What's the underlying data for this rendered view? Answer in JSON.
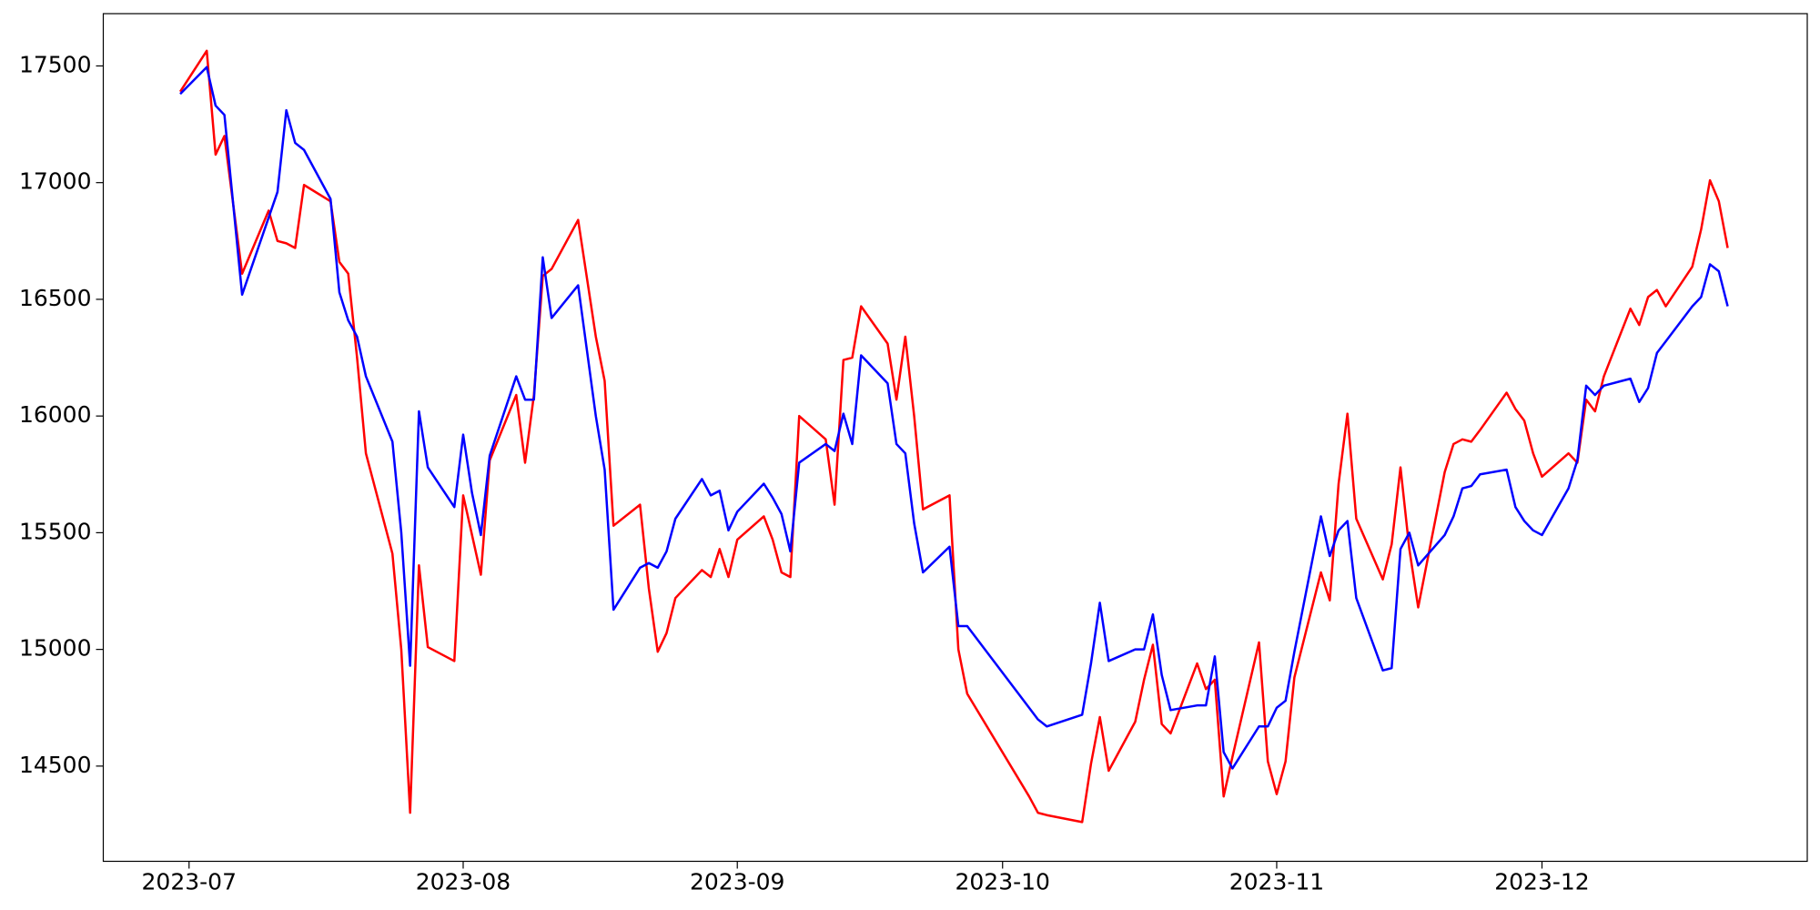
{
  "chart_data": {
    "type": "line",
    "x": [
      19538,
      19541,
      19542,
      19543,
      19545,
      19548,
      19549,
      19550,
      19551,
      19552,
      19555,
      19556,
      19557,
      19558,
      19559,
      19562,
      19563,
      19564,
      19565,
      19566,
      19569,
      19570,
      19571,
      19572,
      19573,
      19576,
      19577,
      19578,
      19579,
      19580,
      19583,
      19585,
      19586,
      19587,
      19590,
      19591,
      19592,
      19593,
      19594,
      19597,
      19598,
      19599,
      19600,
      19601,
      19604,
      19605,
      19606,
      19607,
      19608,
      19611,
      19612,
      19613,
      19614,
      19615,
      19618,
      19619,
      19620,
      19621,
      19622,
      19625,
      19626,
      19627,
      19634,
      19635,
      19636,
      19640,
      19641,
      19642,
      19643,
      19646,
      19647,
      19648,
      19649,
      19650,
      19653,
      19654,
      19655,
      19656,
      19657,
      19660,
      19661,
      19662,
      19663,
      19664,
      19667,
      19668,
      19669,
      19670,
      19671,
      19674,
      19675,
      19676,
      19677,
      19678,
      19681,
      19682,
      19683,
      19684,
      19685,
      19688,
      19689,
      19690,
      19691,
      19692,
      19695,
      19696,
      19697,
      19698,
      19699,
      19702,
      19703,
      19704,
      19705,
      19706,
      19709,
      19710,
      19711,
      19712,
      19713
    ],
    "series": [
      {
        "color": "#ff0000",
        "values": [
          17390,
          17565,
          17120,
          17200,
          16610,
          16880,
          16750,
          16740,
          16720,
          16990,
          16920,
          16660,
          16610,
          16250,
          15840,
          15410,
          15000,
          14300,
          15360,
          15010,
          14950,
          15660,
          15490,
          15320,
          15810,
          16090,
          15800,
          16090,
          16600,
          16630,
          16840,
          16340,
          16150,
          15530,
          15620,
          15260,
          14990,
          15070,
          15220,
          15340,
          15310,
          15430,
          15310,
          15470,
          15570,
          15470,
          15330,
          15310,
          16000,
          15900,
          15620,
          16240,
          16250,
          16470,
          16310,
          16070,
          16340,
          16000,
          15600,
          15660,
          15000,
          14810,
          14370,
          14300,
          14290,
          14260,
          14510,
          14710,
          14480,
          14690,
          14870,
          15020,
          14680,
          14640,
          14940,
          14830,
          14870,
          14370,
          14540,
          15030,
          14520,
          14380,
          14520,
          14880,
          15330,
          15210,
          15710,
          16010,
          15560,
          15300,
          15450,
          15780,
          15430,
          15180,
          15760,
          15880,
          15900,
          15890,
          15940,
          16100,
          16030,
          15980,
          15840,
          15740,
          15840,
          15800,
          16070,
          16020,
          16170,
          16460,
          16390,
          16510,
          16540,
          16470,
          16640,
          16800,
          17010,
          16920,
          16720
        ]
      },
      {
        "color": "#0000ff",
        "values": [
          17380,
          17495,
          17330,
          17290,
          16520,
          16850,
          16960,
          17310,
          17170,
          17140,
          16930,
          16530,
          16410,
          16340,
          16170,
          15890,
          15500,
          14930,
          16020,
          15780,
          15610,
          15920,
          15670,
          15490,
          15830,
          16170,
          16070,
          16070,
          16680,
          16420,
          16560,
          16000,
          15770,
          15170,
          15350,
          15370,
          15350,
          15420,
          15560,
          15730,
          15660,
          15680,
          15510,
          15590,
          15710,
          15650,
          15580,
          15420,
          15800,
          15880,
          15850,
          16010,
          15880,
          16260,
          16140,
          15880,
          15840,
          15540,
          15330,
          15440,
          15100,
          15100,
          14750,
          14700,
          14670,
          14720,
          14940,
          15200,
          14950,
          15000,
          15000,
          15150,
          14890,
          14740,
          14760,
          14760,
          14970,
          14560,
          14490,
          14670,
          14670,
          14750,
          14780,
          14990,
          15570,
          15400,
          15510,
          15550,
          15220,
          14910,
          14920,
          15430,
          15500,
          15360,
          15490,
          15570,
          15690,
          15700,
          15750,
          15770,
          15610,
          15550,
          15510,
          15490,
          15690,
          15810,
          16130,
          16090,
          16130,
          16160,
          16060,
          16120,
          16270,
          16320,
          16470,
          16510,
          16650,
          16620,
          16470
        ]
      }
    ],
    "xlim": [
      19529.3,
      19722
    ],
    "ylim": [
      14092,
      17724
    ],
    "xticks": [
      {
        "value": 19539,
        "label": "2023-07"
      },
      {
        "value": 19570,
        "label": "2023-08"
      },
      {
        "value": 19601,
        "label": "2023-09"
      },
      {
        "value": 19631,
        "label": "2023-10"
      },
      {
        "value": 19662,
        "label": "2023-11"
      },
      {
        "value": 19692,
        "label": "2023-12"
      }
    ],
    "yticks": [
      14500,
      15000,
      15500,
      16000,
      16500,
      17000,
      17500
    ]
  }
}
